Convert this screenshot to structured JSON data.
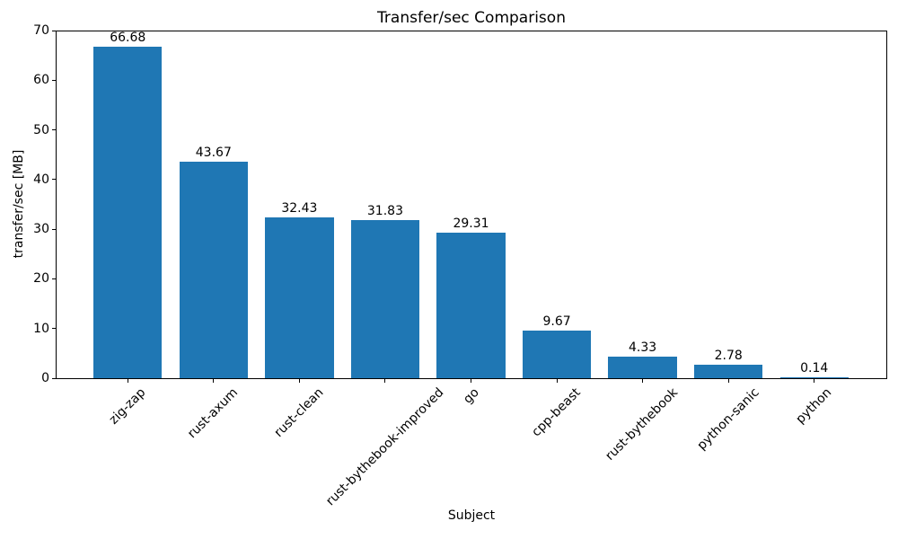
{
  "chart_data": {
    "type": "bar",
    "title": "Transfer/sec Comparison",
    "xlabel": "Subject",
    "ylabel": "transfer/sec [MB]",
    "categories": [
      "zig-zap",
      "rust-axum",
      "rust-clean",
      "rust-bythebook-improved",
      "go",
      "cpp-beast",
      "rust-bythebook",
      "python-sanic",
      "python"
    ],
    "values": [
      66.68,
      43.67,
      32.43,
      31.83,
      29.31,
      9.67,
      4.33,
      2.78,
      0.14
    ],
    "value_labels": [
      "66.68",
      "43.67",
      "32.43",
      "31.83",
      "29.31",
      "9.67",
      "4.33",
      "2.78",
      "0.14"
    ],
    "ylim": [
      0,
      70
    ],
    "yticks": [
      0,
      10,
      20,
      30,
      40,
      50,
      60,
      70
    ],
    "x_tick_rotation_deg": 45,
    "grid": false,
    "legend": null,
    "bar_color": "#1f77b4",
    "axis_color": "#000000",
    "background_color": "#ffffff"
  }
}
